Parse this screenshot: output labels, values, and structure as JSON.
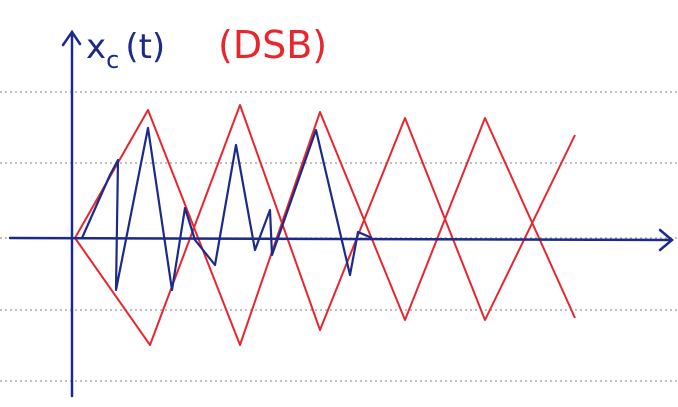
{
  "axis_label": {
    "base": "x",
    "subscript": "c",
    "suffix": "(t)"
  },
  "annotation": "(DSB)"
}
